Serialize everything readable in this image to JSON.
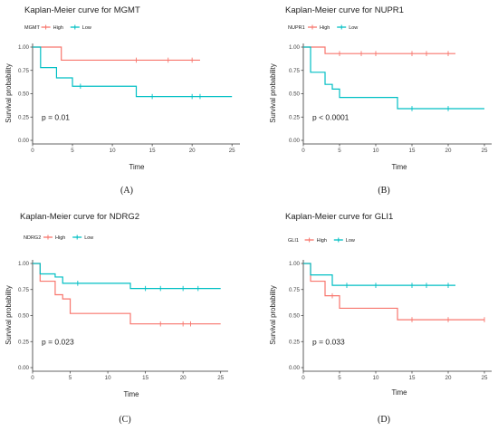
{
  "colors": {
    "high": "#F8766D",
    "low": "#00BFC4",
    "axis": "#333333",
    "text": "#222222"
  },
  "chart_data": [
    {
      "type": "line",
      "label": "(A)",
      "title": "Kaplan-Meier curve for MGMT",
      "legend_title": "MGMT",
      "xlabel": "Time",
      "ylabel": "Survival probability",
      "xlim": [
        0,
        26
      ],
      "ylim": [
        0,
        1
      ],
      "xticks": [
        "0",
        "5",
        "10",
        "15",
        "20",
        "25"
      ],
      "yticks": [
        "0.00",
        "0.25",
        "0.50",
        "0.75",
        "1.00"
      ],
      "pvalue_text": "p = 0.01",
      "series": [
        {
          "name": "High",
          "color": "#F8766D",
          "steps": [
            [
              0,
              1.0
            ],
            [
              3.6,
              0.86
            ],
            [
              21,
              0.86
            ]
          ],
          "censor": [
            [
              13,
              0.86
            ],
            [
              17,
              0.86
            ],
            [
              20,
              0.86
            ]
          ]
        },
        {
          "name": "Low",
          "color": "#00BFC4",
          "steps": [
            [
              0,
              1.0
            ],
            [
              1,
              0.78
            ],
            [
              3,
              0.67
            ],
            [
              5,
              0.58
            ],
            [
              13,
              0.47
            ],
            [
              25,
              0.47
            ]
          ],
          "censor": [
            [
              6,
              0.58
            ],
            [
              15,
              0.47
            ],
            [
              20,
              0.47
            ],
            [
              21,
              0.47
            ]
          ]
        }
      ]
    },
    {
      "type": "line",
      "label": "(B)",
      "title": "Kaplan-Meier curve for NUPR1",
      "legend_title": "NUPR1",
      "xlabel": "Time",
      "ylabel": "Survival probability",
      "xlim": [
        0,
        26
      ],
      "ylim": [
        0,
        1
      ],
      "xticks": [
        "0",
        "5",
        "10",
        "15",
        "20",
        "25"
      ],
      "yticks": [
        "0.00",
        "0.25",
        "0.50",
        "0.75",
        "1.00"
      ],
      "pvalue_text": "p < 0.0001",
      "series": [
        {
          "name": "High",
          "color": "#F8766D",
          "steps": [
            [
              0,
              1.0
            ],
            [
              3,
              0.93
            ],
            [
              21,
              0.93
            ]
          ],
          "censor": [
            [
              5,
              0.93
            ],
            [
              8,
              0.93
            ],
            [
              10,
              0.93
            ],
            [
              15,
              0.93
            ],
            [
              17,
              0.93
            ],
            [
              20,
              0.93
            ]
          ]
        },
        {
          "name": "Low",
          "color": "#00BFC4",
          "steps": [
            [
              0,
              1.0
            ],
            [
              1,
              0.73
            ],
            [
              3,
              0.6
            ],
            [
              4,
              0.55
            ],
            [
              5,
              0.46
            ],
            [
              13,
              0.34
            ],
            [
              25,
              0.34
            ]
          ],
          "censor": [
            [
              15,
              0.34
            ],
            [
              20,
              0.34
            ]
          ]
        }
      ]
    },
    {
      "type": "line",
      "label": "(C)",
      "title": "Kaplan-Meier curve for NDRG2",
      "legend_title": "NDRG2",
      "xlabel": "Time",
      "ylabel": "Survival probability",
      "xlim": [
        0,
        26
      ],
      "ylim": [
        0,
        1
      ],
      "xticks": [
        "0",
        "5",
        "10",
        "15",
        "20",
        "25"
      ],
      "yticks": [
        "0.00",
        "0.25",
        "0.50",
        "0.75",
        "1.00"
      ],
      "pvalue_text": "p = 0.023",
      "series": [
        {
          "name": "High",
          "color": "#F8766D",
          "steps": [
            [
              0,
              1.0
            ],
            [
              1,
              0.83
            ],
            [
              3,
              0.7
            ],
            [
              4,
              0.66
            ],
            [
              5,
              0.52
            ],
            [
              13,
              0.42
            ],
            [
              25,
              0.42
            ]
          ],
          "censor": [
            [
              17,
              0.42
            ],
            [
              20,
              0.42
            ],
            [
              21,
              0.42
            ]
          ]
        },
        {
          "name": "Low",
          "color": "#00BFC4",
          "steps": [
            [
              0,
              1.0
            ],
            [
              1,
              0.9
            ],
            [
              3,
              0.87
            ],
            [
              4,
              0.81
            ],
            [
              13,
              0.76
            ],
            [
              25,
              0.76
            ]
          ],
          "censor": [
            [
              6,
              0.81
            ],
            [
              15,
              0.76
            ],
            [
              17,
              0.76
            ],
            [
              20,
              0.76
            ],
            [
              22,
              0.76
            ]
          ]
        }
      ]
    },
    {
      "type": "line",
      "label": "(D)",
      "title": "Kaplan-Meier curve for GLI1",
      "legend_title": "GLI1",
      "xlabel": "Time",
      "ylabel": "Survival probability",
      "xlim": [
        0,
        26
      ],
      "ylim": [
        0,
        1
      ],
      "xticks": [
        "0",
        "5",
        "10",
        "15",
        "20",
        "25"
      ],
      "yticks": [
        "0.00",
        "0.25",
        "0.50",
        "0.75",
        "1.00"
      ],
      "pvalue_text": "p = 0.033",
      "series": [
        {
          "name": "High",
          "color": "#F8766D",
          "steps": [
            [
              0,
              1.0
            ],
            [
              1,
              0.83
            ],
            [
              3,
              0.69
            ],
            [
              5,
              0.57
            ],
            [
              13,
              0.46
            ],
            [
              25,
              0.46
            ]
          ],
          "censor": [
            [
              4,
              0.69
            ],
            [
              15,
              0.46
            ],
            [
              20,
              0.46
            ],
            [
              25,
              0.46
            ]
          ]
        },
        {
          "name": "Low",
          "color": "#00BFC4",
          "steps": [
            [
              0,
              1.0
            ],
            [
              1,
              0.89
            ],
            [
              4,
              0.79
            ],
            [
              21,
              0.79
            ]
          ],
          "censor": [
            [
              6,
              0.79
            ],
            [
              10,
              0.79
            ],
            [
              15,
              0.79
            ],
            [
              17,
              0.79
            ],
            [
              20,
              0.79
            ]
          ]
        }
      ]
    }
  ]
}
